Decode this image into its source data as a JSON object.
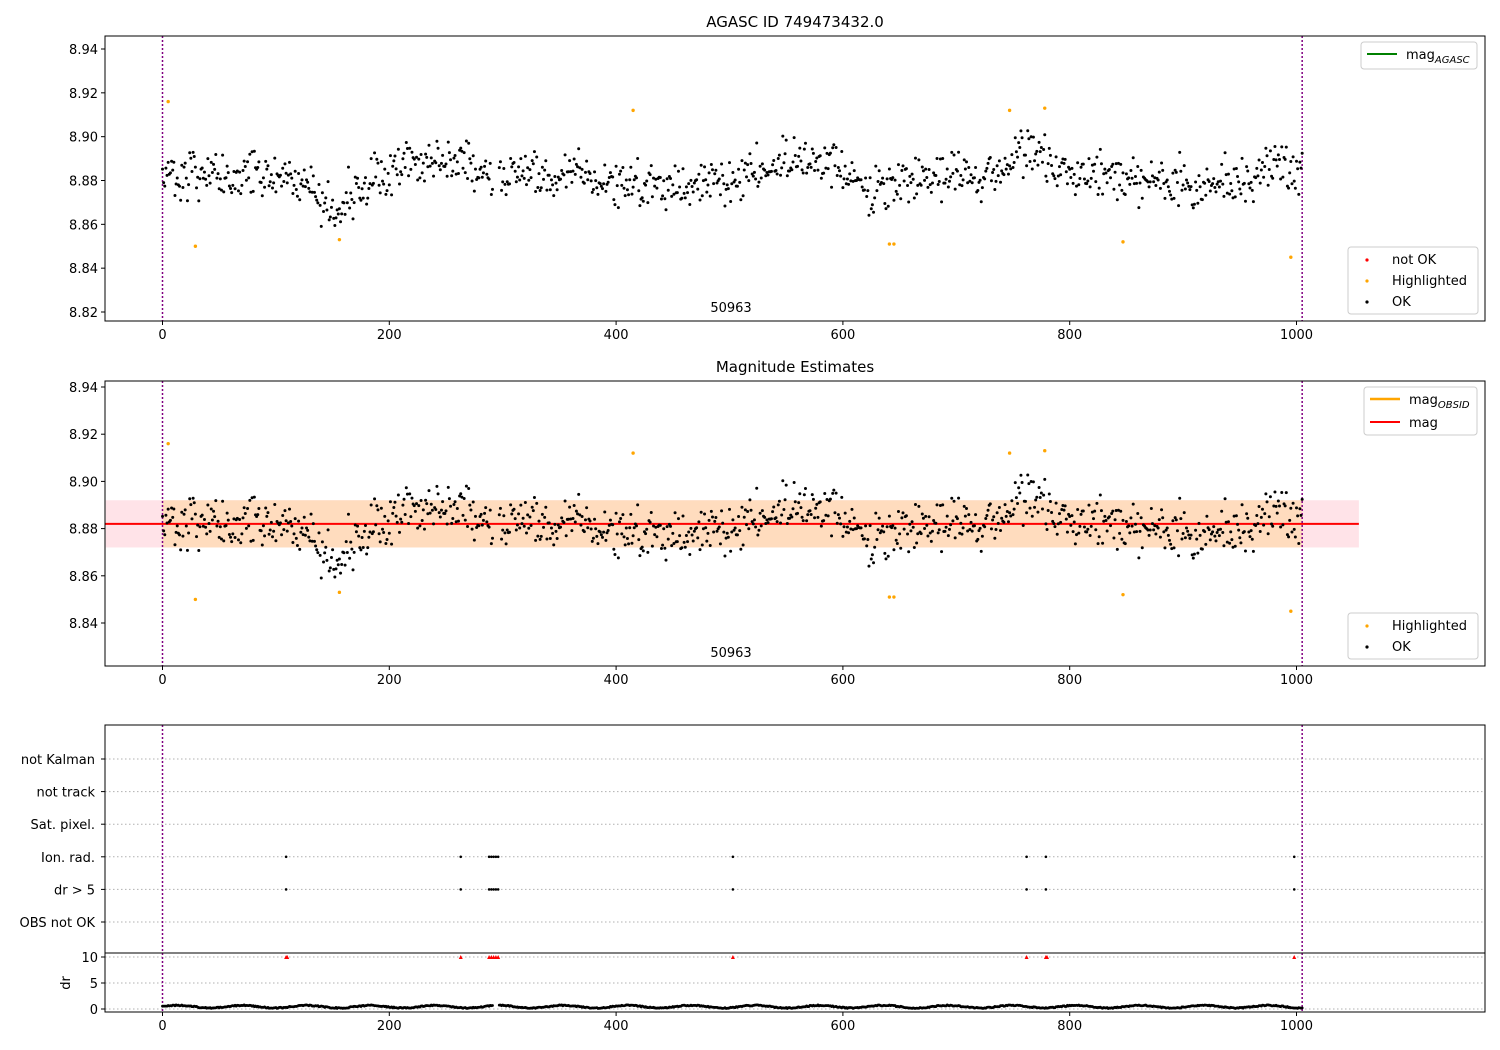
{
  "chart_data": [
    {
      "type": "scatter",
      "title": "AGASC ID 749473432.0",
      "xlim": [
        -50,
        1165
      ],
      "ylim": [
        8.816,
        8.946
      ],
      "x_ticks": [
        0,
        200,
        400,
        600,
        800,
        1000
      ],
      "y_ticks": [
        8.82,
        8.84,
        8.86,
        8.88,
        8.9,
        8.92,
        8.94
      ],
      "y_tick_labels": [
        "8.82",
        "8.84",
        "8.86",
        "8.88",
        "8.90",
        "8.92",
        "8.94"
      ],
      "grid": false,
      "annotation": "50963",
      "vlines": [
        0,
        1005
      ],
      "line_legend": [
        {
          "name": "mag",
          "subscript": "AGASC",
          "color": "#008000"
        }
      ],
      "marker_legend": [
        {
          "name": "not OK",
          "color": "#ff0000"
        },
        {
          "name": "Highlighted",
          "color": "#ffa500"
        },
        {
          "name": "OK",
          "color": "#000000"
        }
      ],
      "legend_placement": [
        "upper right",
        "lower right"
      ],
      "series": [
        {
          "name": "OK",
          "color": "#000000",
          "description": "about 1000 magnitude samples from x=0 to x=1005 scattered between 8.857 and 8.910, centered near 8.882"
        },
        {
          "name": "Highlighted",
          "color": "#ffa500",
          "points": [
            [
              5,
              8.916
            ],
            [
              29,
              8.85
            ],
            [
              156,
              8.853
            ],
            [
              415,
              8.912
            ],
            [
              641,
              8.851
            ],
            [
              645,
              8.851
            ],
            [
              747,
              8.912
            ],
            [
              778,
              8.913
            ],
            [
              847,
              8.852
            ],
            [
              995,
              8.845
            ]
          ]
        }
      ]
    },
    {
      "type": "scatter",
      "title": "Magnitude Estimates",
      "xlim": [
        -50,
        1165
      ],
      "ylim": [
        8.823,
        8.946
      ],
      "x_ticks": [
        0,
        200,
        400,
        600,
        800,
        1000
      ],
      "y_ticks": [
        8.84,
        8.86,
        8.88,
        8.9,
        8.92,
        8.94
      ],
      "y_tick_labels": [
        "8.84",
        "8.86",
        "8.88",
        "8.90",
        "8.92",
        "8.94"
      ],
      "grid": false,
      "annotation": "50963",
      "vlines": [
        0,
        1005
      ],
      "mag_line": {
        "value": 8.882,
        "x_range": [
          -50,
          1055
        ],
        "color": "#ff0000"
      },
      "mag_band": {
        "low": 8.872,
        "high": 8.892,
        "x_range": [
          -50,
          1055
        ],
        "color": "#ffc0cb"
      },
      "obsid_band": {
        "low": 8.872,
        "high": 8.892,
        "x_range": [
          0,
          1005
        ],
        "color": "#ffdab9"
      },
      "line_legend": [
        {
          "name": "mag",
          "subscript": "OBSID",
          "color": "#ffa500"
        },
        {
          "name": "mag",
          "subscript": "",
          "color": "#ff0000"
        }
      ],
      "marker_legend": [
        {
          "name": "Highlighted",
          "color": "#ffa500"
        },
        {
          "name": "OK",
          "color": "#000000"
        }
      ],
      "legend_placement": [
        "upper right",
        "lower right"
      ],
      "series": [
        {
          "name": "OK",
          "color": "#000000",
          "description": "same samples as the top panel"
        },
        {
          "name": "Highlighted",
          "color": "#ffa500",
          "points": [
            [
              5,
              8.916
            ],
            [
              29,
              8.85
            ],
            [
              156,
              8.853
            ],
            [
              415,
              8.912
            ],
            [
              641,
              8.851
            ],
            [
              645,
              8.851
            ],
            [
              747,
              8.912
            ],
            [
              778,
              8.913
            ],
            [
              847,
              8.852
            ],
            [
              995,
              8.845
            ]
          ]
        }
      ]
    },
    {
      "type": "scatter",
      "xlim": [
        -50,
        1165
      ],
      "x_ticks": [
        0,
        200,
        400,
        600,
        800,
        1000
      ],
      "vlines": [
        0,
        1005
      ],
      "flag_rows": [
        "not Kalman",
        "not track",
        "Sat. pixel.",
        "Ion. rad.",
        "dr > 5",
        "OBS not OK"
      ],
      "grid": true,
      "flag_events": [
        {
          "row": "Ion. rad.",
          "x": [
            109,
            263,
            288,
            290,
            292,
            294,
            296,
            503,
            762,
            779,
            998
          ]
        },
        {
          "row": "dr > 5",
          "x": [
            109,
            263,
            288,
            290,
            292,
            294,
            296,
            503,
            762,
            779,
            998
          ]
        }
      ]
    },
    {
      "type": "scatter",
      "xlim": [
        -50,
        1165
      ],
      "ylim": [
        -0.6,
        10.6
      ],
      "x_ticks": [
        0,
        200,
        400,
        600,
        800,
        1000
      ],
      "y_ticks": [
        0,
        5,
        10
      ],
      "y_tick_labels": [
        "0",
        "5",
        "10"
      ],
      "ylabel": "dr",
      "grid": true,
      "vlines": [
        0,
        1005
      ],
      "series": [
        {
          "name": "dr",
          "color": "#000000",
          "description": "dr values for every sample, between 0.0 and 1.0"
        },
        {
          "name": "clipped",
          "color": "#ff0000",
          "marker": "triangle",
          "x": [
            109,
            110,
            263,
            288,
            290,
            292,
            294,
            296,
            503,
            762,
            779,
            780,
            998
          ],
          "values": [
            10,
            10,
            10,
            10,
            10,
            10,
            10,
            10,
            10,
            10,
            10,
            10,
            10
          ]
        }
      ]
    }
  ]
}
